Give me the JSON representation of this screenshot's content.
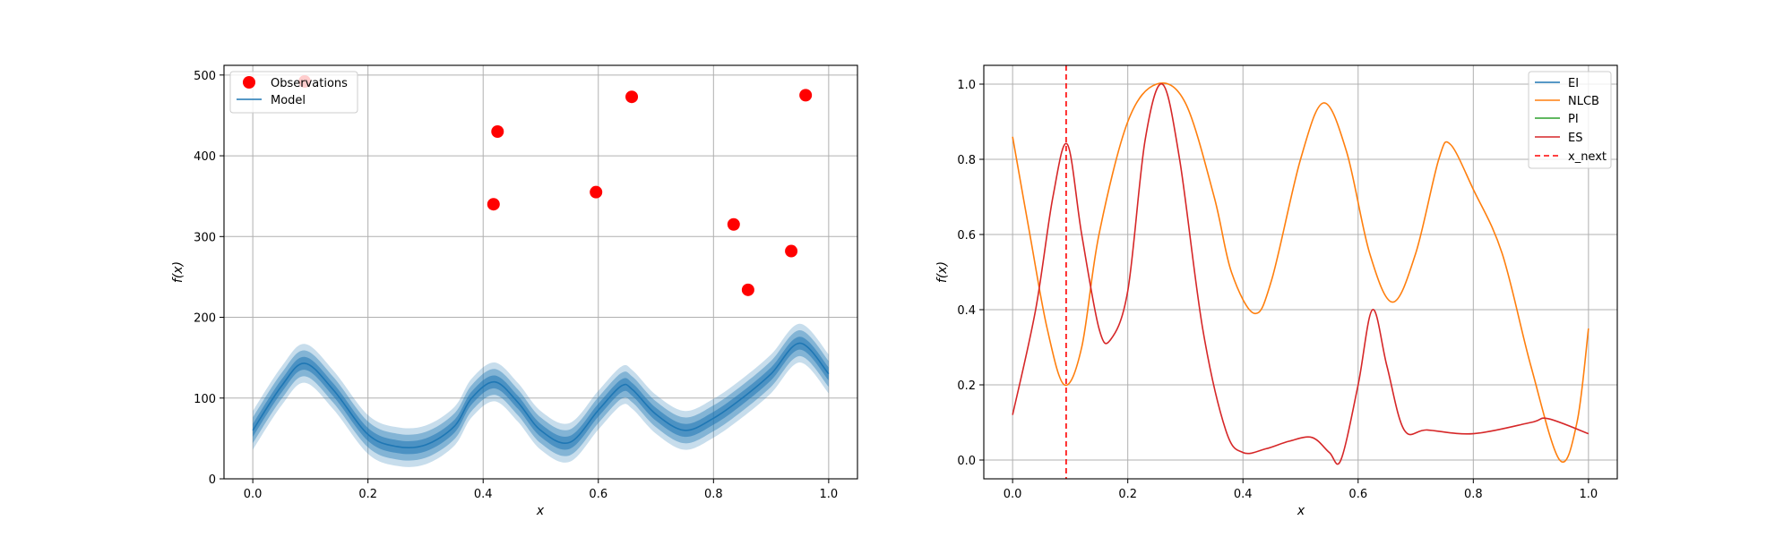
{
  "chart_data": [
    {
      "type": "scatter",
      "title": "",
      "xlabel": "x",
      "ylabel": "f(x)",
      "xlim": [
        -0.05,
        1.05
      ],
      "ylim": [
        0,
        512
      ],
      "xticks": [
        "0.0",
        "0.2",
        "0.4",
        "0.6",
        "0.8",
        "1.0"
      ],
      "xtick_values": [
        0,
        0.2,
        0.4,
        0.6,
        0.8,
        1.0
      ],
      "yticks": [
        "0",
        "100",
        "200",
        "300",
        "400",
        "500"
      ],
      "ytick_values": [
        0,
        100,
        200,
        300,
        400,
        500
      ],
      "grid": true,
      "legend": {
        "placement": "upper-left",
        "entries": [
          {
            "label": "Observations",
            "marker": "circle",
            "color": "#ff0000"
          },
          {
            "label": "Model",
            "marker": "line",
            "color": "#1f77b4"
          }
        ]
      },
      "observations": {
        "name": "Observations",
        "color": "#ff0000",
        "x": [
          0.09,
          0.418,
          0.425,
          0.596,
          0.658,
          0.835,
          0.86,
          0.935,
          0.96
        ],
        "y": [
          492,
          340,
          430,
          355,
          473,
          315,
          234,
          282,
          475
        ]
      },
      "model": {
        "name": "Model",
        "color": "#1f77b4",
        "band_half_widths": [
          8,
          16,
          24
        ],
        "x": [
          0.0,
          0.05,
          0.09,
          0.14,
          0.2,
          0.25,
          0.3,
          0.35,
          0.38,
          0.42,
          0.46,
          0.5,
          0.55,
          0.6,
          0.64,
          0.66,
          0.7,
          0.75,
          0.8,
          0.85,
          0.9,
          0.95,
          1.0
        ],
        "y": [
          60,
          115,
          143,
          110,
          55,
          40,
          42,
          65,
          100,
          120,
          95,
          60,
          45,
          85,
          115,
          110,
          80,
          60,
          75,
          100,
          130,
          168,
          130
        ]
      }
    },
    {
      "type": "line",
      "title": "",
      "xlabel": "x",
      "ylabel": "f(x)",
      "xlim": [
        -0.05,
        1.05
      ],
      "ylim": [
        -0.05,
        1.05
      ],
      "xticks": [
        "0.0",
        "0.2",
        "0.4",
        "0.6",
        "0.8",
        "1.0"
      ],
      "xtick_values": [
        0,
        0.2,
        0.4,
        0.6,
        0.8,
        1.0
      ],
      "yticks": [
        "0.0",
        "0.2",
        "0.4",
        "0.6",
        "0.8",
        "1.0"
      ],
      "ytick_values": [
        0,
        0.2,
        0.4,
        0.6,
        0.8,
        1.0
      ],
      "grid": true,
      "legend": {
        "placement": "upper-right",
        "entries": [
          {
            "label": "EI",
            "style": "solid",
            "color": "#1f77b4"
          },
          {
            "label": "NLCB",
            "style": "solid",
            "color": "#ff7f0e"
          },
          {
            "label": "PI",
            "style": "solid",
            "color": "#2ca02c"
          },
          {
            "label": "ES",
            "style": "solid",
            "color": "#d62728"
          },
          {
            "label": "x_next",
            "style": "dashed",
            "color": "#ff0000"
          }
        ]
      },
      "x_next": 0.093,
      "series": [
        {
          "name": "NLCB",
          "color": "#ff7f0e",
          "x": [
            0.0,
            0.03,
            0.06,
            0.09,
            0.12,
            0.15,
            0.2,
            0.25,
            0.3,
            0.35,
            0.38,
            0.42,
            0.45,
            0.5,
            0.54,
            0.58,
            0.62,
            0.66,
            0.7,
            0.74,
            0.76,
            0.8,
            0.85,
            0.9,
            0.95,
            0.98,
            1.0
          ],
          "y": [
            0.86,
            0.6,
            0.35,
            0.2,
            0.3,
            0.6,
            0.9,
            1.0,
            0.95,
            0.7,
            0.5,
            0.39,
            0.48,
            0.8,
            0.95,
            0.82,
            0.55,
            0.42,
            0.55,
            0.8,
            0.84,
            0.72,
            0.55,
            0.25,
            0.0,
            0.1,
            0.35
          ]
        },
        {
          "name": "ES",
          "color": "#d62728",
          "x": [
            0.0,
            0.04,
            0.07,
            0.095,
            0.12,
            0.15,
            0.17,
            0.2,
            0.23,
            0.26,
            0.29,
            0.33,
            0.37,
            0.4,
            0.44,
            0.48,
            0.52,
            0.55,
            0.57,
            0.6,
            0.625,
            0.65,
            0.68,
            0.72,
            0.8,
            0.9,
            0.93,
            1.0
          ],
          "y": [
            0.12,
            0.4,
            0.7,
            0.84,
            0.6,
            0.35,
            0.32,
            0.45,
            0.85,
            1.0,
            0.8,
            0.35,
            0.08,
            0.02,
            0.03,
            0.05,
            0.06,
            0.02,
            0.0,
            0.2,
            0.4,
            0.25,
            0.08,
            0.08,
            0.07,
            0.1,
            0.11,
            0.07
          ]
        }
      ]
    }
  ]
}
